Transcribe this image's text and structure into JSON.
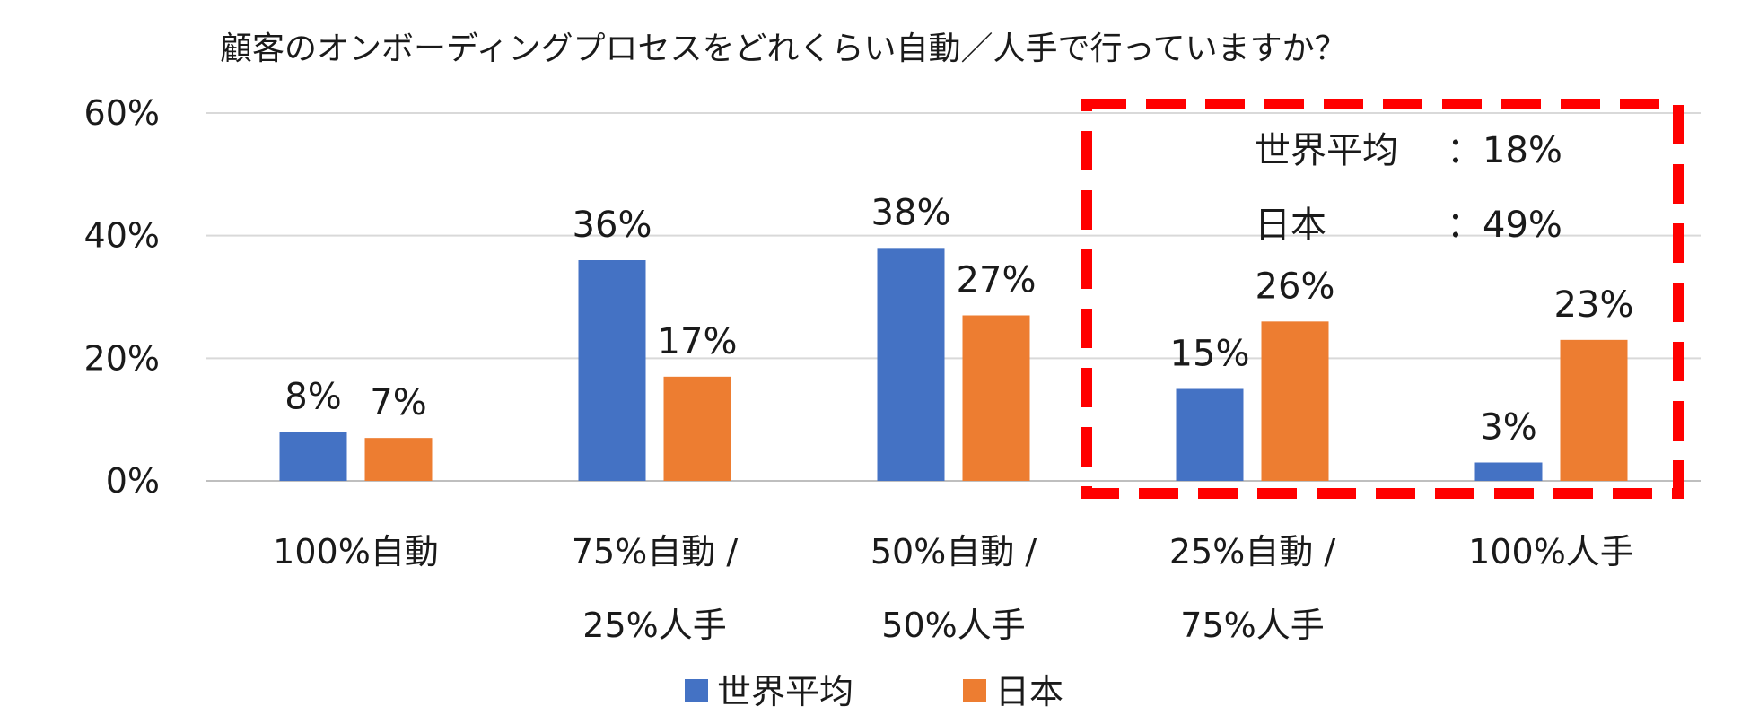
{
  "chart_data": {
    "type": "bar",
    "title": "顧客のオンボーディングプロセスをどれくらい自動／人手で行っていますか？",
    "categories": [
      [
        "100%自動"
      ],
      [
        "75%自動 /",
        "25%人手"
      ],
      [
        "50%自動 /",
        "50%人手"
      ],
      [
        "25%自動 /",
        "75%人手"
      ],
      [
        "100%人手"
      ]
    ],
    "series": [
      {
        "name": "世界平均",
        "color": "#4472c4",
        "values": [
          8,
          36,
          38,
          15,
          3
        ],
        "labels": [
          "8%",
          "36%",
          "38%",
          "15%",
          "3%"
        ]
      },
      {
        "name": "日本",
        "color": "#ed7d31",
        "values": [
          7,
          17,
          27,
          26,
          23
        ],
        "labels": [
          "7%",
          "17%",
          "27%",
          "26%",
          "23%"
        ]
      }
    ],
    "yticks": [
      "0%",
      "20%",
      "40%",
      "60%"
    ],
    "ylim": [
      0,
      60
    ],
    "grid": true,
    "legend": "bottom",
    "annotation": {
      "highlight_color": "#ff0000",
      "rows": [
        {
          "label": "世界平均",
          "value": "：18%"
        },
        {
          "label": "日本",
          "value": "：49%"
        }
      ]
    }
  }
}
